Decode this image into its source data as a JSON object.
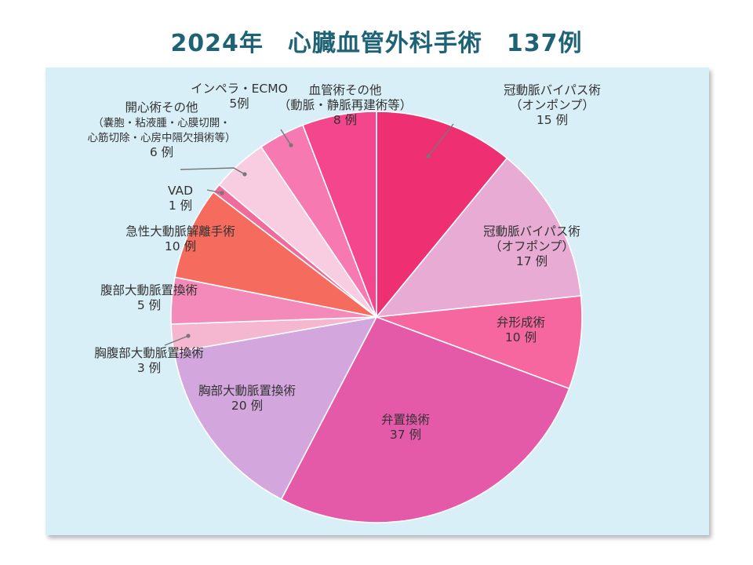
{
  "title": "2024年　心臓血管外科手術　137例",
  "chart_data": {
    "type": "pie",
    "title": "2024年　心臓血管外科手術　137例",
    "total": 137,
    "slices": [
      {
        "name": "冠動脈バイパス術",
        "sub": "（オンポンプ）",
        "value": 15,
        "value_label": "15 例",
        "color": "#ee2f72"
      },
      {
        "name": "冠動脈バイパス術",
        "sub": "（オフポンプ）",
        "value": 17,
        "value_label": "17 例",
        "color": "#e7abd4"
      },
      {
        "name": "弁形成術",
        "sub": "",
        "value": 10,
        "value_label": "10 例",
        "color": "#f6669f"
      },
      {
        "name": "弁置換術",
        "sub": "",
        "value": 37,
        "value_label": "37 例",
        "color": "#e45aa9"
      },
      {
        "name": "胸部大動脈置換術",
        "sub": "",
        "value": 20,
        "value_label": "20 例",
        "color": "#d4a6de"
      },
      {
        "name": "胸腹部大動脈置換術",
        "sub": "",
        "value": 3,
        "value_label": "3 例",
        "color": "#f5b7cf"
      },
      {
        "name": "腹部大動脈置換術",
        "sub": "",
        "value": 5,
        "value_label": "5 例",
        "color": "#f48ab9"
      },
      {
        "name": "急性大動脈解離手術",
        "sub": "",
        "value": 10,
        "value_label": "10 例",
        "color": "#f56c5f"
      },
      {
        "name": "VAD",
        "sub": "",
        "value": 1,
        "value_label": "1 例",
        "color": "#f06b9c"
      },
      {
        "name": "開心術その他",
        "sub": "（嚢胞・粘液腫・心膜切開・\n心筋切除・心房中隔欠損術等）",
        "value": 6,
        "value_label": "6 例",
        "color": "#f8cde2"
      },
      {
        "name": "インペラ・ECMO",
        "sub": "",
        "value": 5,
        "value_label": "5例",
        "color": "#f679b2"
      },
      {
        "name": "血管術その他",
        "sub": "（動脈・静脈再建術等）",
        "value": 8,
        "value_label": "8 例",
        "color": "#f4468c"
      }
    ]
  }
}
